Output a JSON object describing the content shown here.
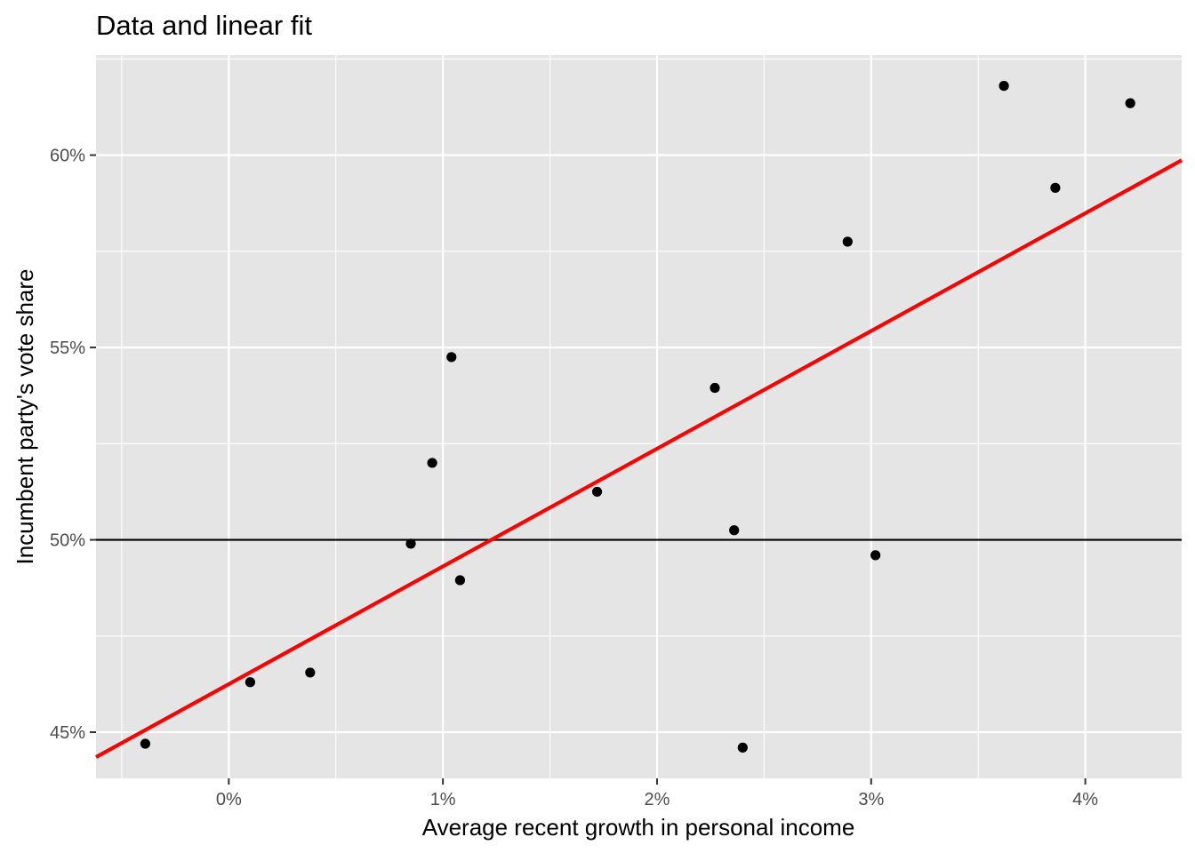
{
  "chart_data": {
    "type": "scatter",
    "title": "Data and linear fit",
    "xlabel": "Average recent growth in personal income",
    "ylabel": "Incumbent party's vote share",
    "xlim": [
      -0.62,
      4.45
    ],
    "ylim": [
      43.8,
      62.6
    ],
    "x_ticks": [
      0,
      1,
      2,
      3,
      4
    ],
    "x_tick_labels": [
      "0%",
      "1%",
      "2%",
      "3%",
      "4%"
    ],
    "y_ticks": [
      45,
      50,
      55,
      60
    ],
    "y_tick_labels": [
      "45%",
      "50%",
      "55%",
      "60%"
    ],
    "grid": true,
    "background": "#e5e5e5",
    "points": [
      {
        "x": -0.39,
        "y": 44.7
      },
      {
        "x": 0.1,
        "y": 46.3
      },
      {
        "x": 0.38,
        "y": 46.55
      },
      {
        "x": 0.85,
        "y": 49.9
      },
      {
        "x": 0.95,
        "y": 52.0
      },
      {
        "x": 1.04,
        "y": 54.75
      },
      {
        "x": 1.08,
        "y": 48.95
      },
      {
        "x": 1.72,
        "y": 51.25
      },
      {
        "x": 2.27,
        "y": 53.95
      },
      {
        "x": 2.36,
        "y": 50.25
      },
      {
        "x": 2.4,
        "y": 44.6
      },
      {
        "x": 2.89,
        "y": 57.75
      },
      {
        "x": 3.02,
        "y": 49.6
      },
      {
        "x": 3.62,
        "y": 61.8
      },
      {
        "x": 3.86,
        "y": 59.15
      },
      {
        "x": 4.21,
        "y": 61.35
      }
    ],
    "point_color": "#000000",
    "fit_line": {
      "intercept": 46.25,
      "slope": 3.06,
      "color": "#ff0000"
    },
    "reference_line": {
      "y": 50,
      "color": "#000000"
    }
  }
}
